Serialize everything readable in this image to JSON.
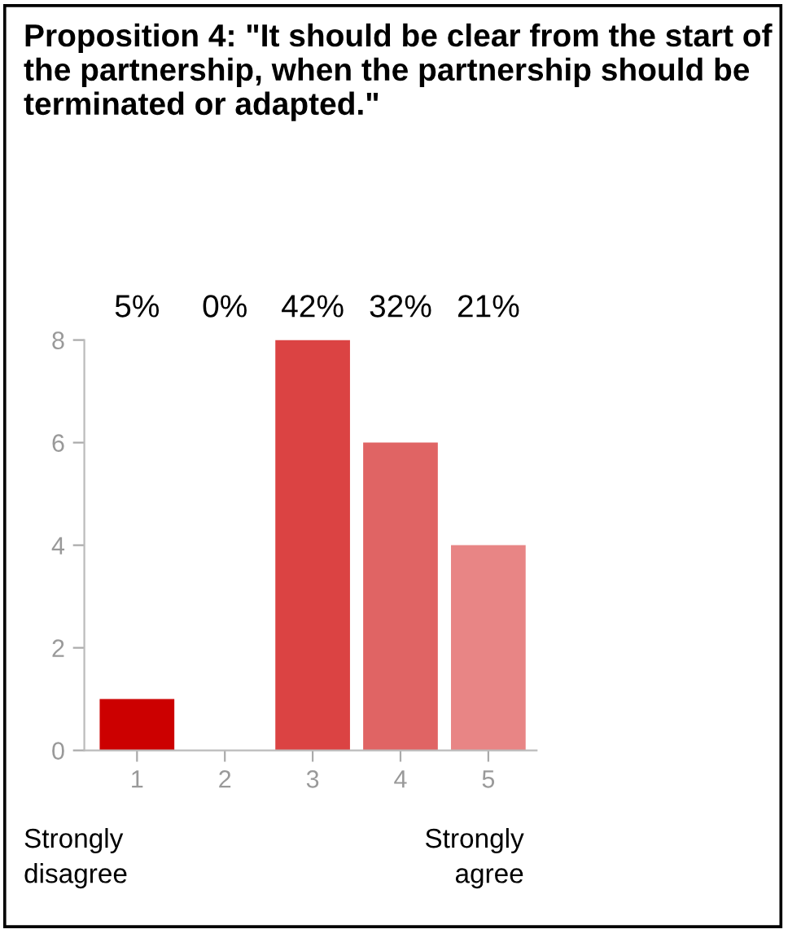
{
  "chart_data": {
    "type": "bar",
    "title": "Proposition 4: \"It should be clear from the start of the partnership, when the partnership should be terminated or adapted.\"",
    "categories": [
      "1",
      "2",
      "3",
      "4",
      "5"
    ],
    "values": [
      1,
      0,
      8,
      6,
      4
    ],
    "colors": [
      "#cc0000",
      "#d62f2f",
      "#db4343",
      "#e06464",
      "#e88585"
    ],
    "ylim": [
      0,
      8
    ],
    "yticks": [
      0,
      2,
      4,
      6,
      8
    ],
    "grid": false,
    "legend": false,
    "annotations": [
      "5%",
      "0%",
      "42%",
      "32%",
      "21%",
      "Strongly\ndisagree",
      "Strongly\nagree"
    ]
  }
}
